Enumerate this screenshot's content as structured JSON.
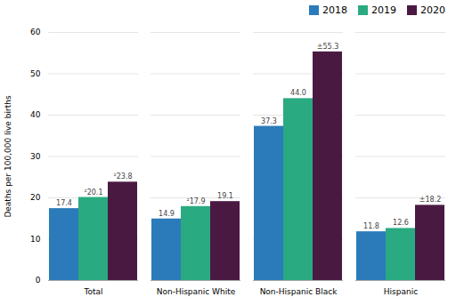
{
  "chart_data": {
    "type": "bar",
    "categories": [
      "Total",
      "Non-Hispanic White",
      "Non-Hispanic Black",
      "Hispanic"
    ],
    "series": [
      {
        "name": "2018",
        "color": "#2b7bba",
        "values": [
          17.4,
          14.9,
          37.3,
          11.8
        ],
        "value_labels": [
          "17.4",
          "14.9",
          "37.3",
          "11.8"
        ]
      },
      {
        "name": "2019",
        "color": "#2aaa80",
        "values": [
          20.1,
          17.9,
          44.0,
          12.6
        ],
        "value_labels": [
          "²20.1",
          "²17.9",
          "44.0",
          "12.6"
        ]
      },
      {
        "name": "2020",
        "color": "#4a1942",
        "values": [
          23.8,
          19.1,
          55.3,
          18.2
        ],
        "value_labels": [
          "²23.8",
          "19.1",
          "±55.3",
          "±18.2"
        ]
      }
    ],
    "ylabel": "Deaths per 100,000 live births",
    "ylim": [
      0,
      60
    ],
    "yticks": [
      0,
      10,
      20,
      30,
      40,
      50,
      60
    ],
    "grid": true,
    "legend": "upper right",
    "data_labels": true
  }
}
